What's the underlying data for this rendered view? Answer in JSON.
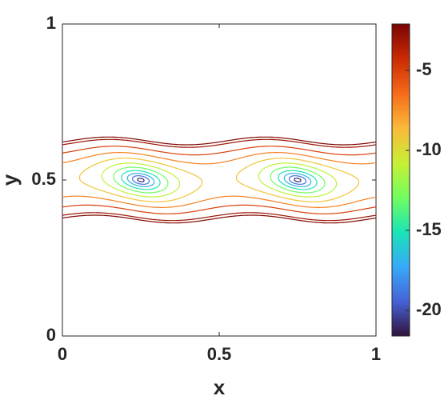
{
  "chart_data": {
    "type": "contour",
    "x_label": "x",
    "y_label": "y",
    "xlim": [
      0,
      1
    ],
    "ylim": [
      0,
      1
    ],
    "xticks": [
      0,
      0.5,
      1
    ],
    "yticks": [
      0,
      0.5,
      1
    ],
    "levels": [
      -21,
      -19,
      -17,
      -15,
      -13,
      -11,
      -9,
      -7,
      -5,
      -3,
      -2.3
    ],
    "clim": [
      -21.6,
      -2.1
    ],
    "colorbar_ticks": [
      -5,
      -10,
      -15,
      -20
    ],
    "colormap": [
      "#30123b",
      "#4662d7",
      "#36aaf9",
      "#1ae4b6",
      "#72fe5e",
      "#c8ef34",
      "#faba39",
      "#f66b19",
      "#ca2a04",
      "#7a0403"
    ]
  }
}
